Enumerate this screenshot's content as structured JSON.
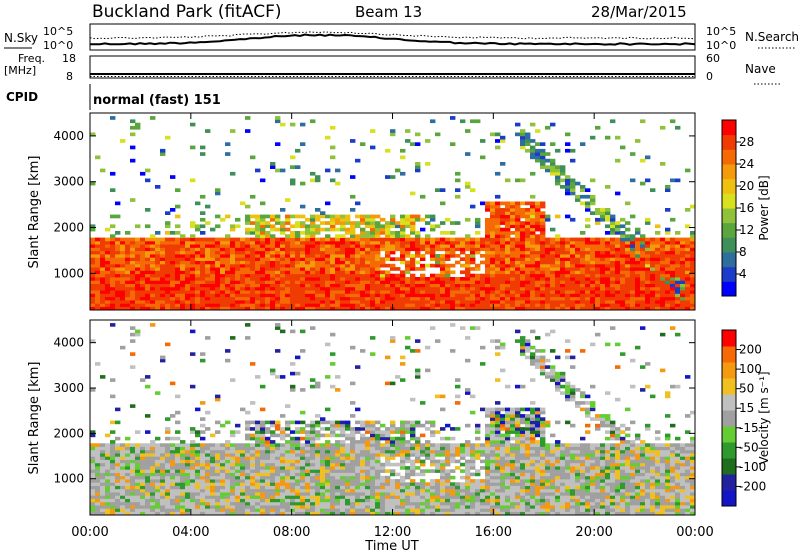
{
  "header": {
    "station": "Buckland Park (fitACF)",
    "beam": "Beam 13",
    "date": "28/Mar/2015"
  },
  "noise_panel": {
    "left_label": "N.Sky",
    "right_label": "N.Search",
    "left_ticks": [
      "10^5",
      "10^0"
    ],
    "right_ticks": [
      "10^5",
      "10^0"
    ]
  },
  "freq_panel": {
    "left_label_1": "Freq.",
    "left_label_2": "[MHz]",
    "right_label": "Nave",
    "left_ticks": [
      "18",
      "8"
    ],
    "right_ticks": [
      "60",
      "0"
    ]
  },
  "cpid": {
    "label": "CPID",
    "value": "normal (fast) 151"
  },
  "colors": {
    "power": [
      "#0000ff",
      "#1a3cc8",
      "#2e6e9e",
      "#3f8f5a",
      "#5aa53c",
      "#8fc23a",
      "#d8e020",
      "#f0c010",
      "#f59a0a",
      "#f56a05",
      "#f03c02",
      "#ff0000"
    ],
    "velocity": [
      "#1515c8",
      "#2222a0",
      "#1e6e1e",
      "#2e9a2e",
      "#66cc33",
      "#a0a0a0",
      "#c0c0c0",
      "#f0c020",
      "#f59a10",
      "#f56a05",
      "#ff0000"
    ]
  },
  "chart_data": [
    {
      "type": "heatmap",
      "name": "power",
      "ylabel": "Slant Range [km]",
      "yticks": [
        "1000",
        "2000",
        "3000",
        "4000"
      ],
      "ylim": [
        200,
        4500
      ],
      "xlim": [
        0,
        24
      ],
      "colorbar_label": "Power [dB]",
      "colorbar_ticks": [
        "4",
        "8",
        "12",
        "16",
        "20",
        "24",
        "28"
      ],
      "colorbar_range": [
        0,
        32
      ]
    },
    {
      "type": "heatmap",
      "name": "velocity",
      "ylabel": "Slant Range [km]",
      "yticks": [
        "1000",
        "2000",
        "3000",
        "4000"
      ],
      "ylim": [
        200,
        4500
      ],
      "xlim": [
        0,
        24
      ],
      "xticks": [
        "00:00",
        "04:00",
        "08:00",
        "12:00",
        "16:00",
        "20:00",
        "00:00"
      ],
      "xlabel": "Time UT",
      "colorbar_label": "Velocity [m s⁻¹]",
      "colorbar_ticks": [
        "200",
        "100",
        "50",
        "15",
        "-15",
        "-50",
        "-100",
        "-200"
      ]
    }
  ]
}
